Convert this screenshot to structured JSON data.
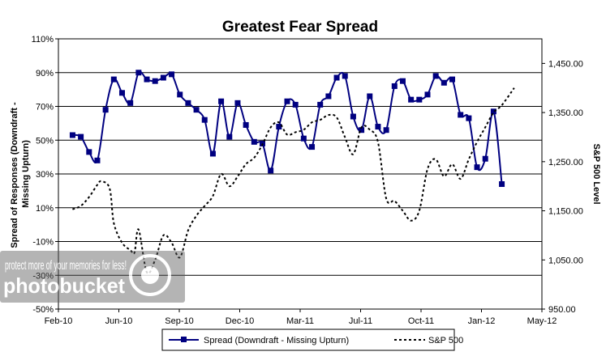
{
  "chart_data": {
    "type": "line",
    "title": "Greatest Fear Spread",
    "ylabel": "Spread of Responses (Downdraft - Missing Upturn)",
    "y2label": "S&P 500 Level",
    "xlabel": "",
    "x_ticks": [
      "Feb-10",
      "Jun-10",
      "Sep-10",
      "Dec-10",
      "Mar-11",
      "Jul-11",
      "Oct-11",
      "Jan-12",
      "May-12"
    ],
    "x_range": [
      "2010-02-01",
      "2012-05-01"
    ],
    "y_ticks": [
      "110%",
      "90%",
      "70%",
      "50%",
      "30%",
      "10%",
      "-10%",
      "-30%",
      "-50%"
    ],
    "ylim": [
      -50,
      110
    ],
    "y2_ticks": [
      "1,450.00",
      "1,350.00",
      "1,250.00",
      "1,150.00",
      "1,050.00",
      "950.00"
    ],
    "y2lim": [
      950,
      1500
    ],
    "grid": "horizontal",
    "legend_position": "bottom",
    "series": [
      {
        "name": "Spread (Downdraft - Missing Upturn)",
        "axis": "left",
        "color": "#000080",
        "marker": "square",
        "line": "solid",
        "points": [
          [
            "2010-02-25",
            53
          ],
          [
            "2010-03-11",
            52
          ],
          [
            "2010-03-25",
            43
          ],
          [
            "2010-04-08",
            38
          ],
          [
            "2010-04-22",
            68
          ],
          [
            "2010-05-06",
            86
          ],
          [
            "2010-05-20",
            78
          ],
          [
            "2010-06-03",
            72
          ],
          [
            "2010-06-17",
            90
          ],
          [
            "2010-07-01",
            86
          ],
          [
            "2010-07-15",
            85
          ],
          [
            "2010-07-29",
            87
          ],
          [
            "2010-08-12",
            89
          ],
          [
            "2010-08-26",
            77
          ],
          [
            "2010-09-09",
            72
          ],
          [
            "2010-09-23",
            68
          ],
          [
            "2010-10-07",
            62
          ],
          [
            "2010-10-21",
            42
          ],
          [
            "2010-11-04",
            73
          ],
          [
            "2010-11-18",
            52
          ],
          [
            "2010-12-02",
            72
          ],
          [
            "2010-12-16",
            59
          ],
          [
            "2010-12-30",
            49
          ],
          [
            "2011-01-13",
            48
          ],
          [
            "2011-01-27",
            32
          ],
          [
            "2011-02-10",
            58
          ],
          [
            "2011-02-24",
            73
          ],
          [
            "2011-03-10",
            71
          ],
          [
            "2011-03-24",
            51
          ],
          [
            "2011-04-07",
            46
          ],
          [
            "2011-04-21",
            71
          ],
          [
            "2011-05-05",
            76
          ],
          [
            "2011-05-19",
            87
          ],
          [
            "2011-06-02",
            88
          ],
          [
            "2011-06-16",
            64
          ],
          [
            "2011-06-30",
            56
          ],
          [
            "2011-07-14",
            76
          ],
          [
            "2011-07-28",
            58
          ],
          [
            "2011-08-11",
            56
          ],
          [
            "2011-08-25",
            82
          ],
          [
            "2011-09-08",
            85
          ],
          [
            "2011-09-22",
            74
          ],
          [
            "2011-10-06",
            74
          ],
          [
            "2011-10-20",
            77
          ],
          [
            "2011-11-03",
            88
          ],
          [
            "2011-11-17",
            84
          ],
          [
            "2011-12-01",
            86
          ],
          [
            "2011-12-15",
            65
          ],
          [
            "2011-12-29",
            63
          ],
          [
            "2012-01-12",
            34
          ],
          [
            "2012-01-26",
            39
          ],
          [
            "2012-02-09",
            67
          ],
          [
            "2012-02-23",
            24
          ]
        ]
      },
      {
        "name": "S&P 500",
        "axis": "right",
        "color": "#000000",
        "marker": "none",
        "line": "dotted",
        "points": [
          [
            "2010-02-25",
            1153
          ],
          [
            "2010-03-11",
            1160
          ],
          [
            "2010-03-25",
            1178
          ],
          [
            "2010-04-08",
            1203
          ],
          [
            "2010-04-15",
            1210
          ],
          [
            "2010-04-29",
            1195
          ],
          [
            "2010-05-06",
            1125
          ],
          [
            "2010-05-20",
            1085
          ],
          [
            "2010-06-03",
            1070
          ],
          [
            "2010-06-10",
            1065
          ],
          [
            "2010-06-17",
            1112
          ],
          [
            "2010-07-01",
            1025
          ],
          [
            "2010-07-15",
            1050
          ],
          [
            "2010-07-29",
            1100
          ],
          [
            "2010-08-12",
            1085
          ],
          [
            "2010-08-26",
            1055
          ],
          [
            "2010-09-09",
            1110
          ],
          [
            "2010-09-23",
            1140
          ],
          [
            "2010-10-07",
            1160
          ],
          [
            "2010-10-21",
            1180
          ],
          [
            "2010-11-04",
            1225
          ],
          [
            "2010-11-18",
            1200
          ],
          [
            "2010-12-02",
            1220
          ],
          [
            "2010-12-16",
            1245
          ],
          [
            "2010-12-30",
            1258
          ],
          [
            "2011-01-13",
            1285
          ],
          [
            "2011-01-27",
            1320
          ],
          [
            "2011-02-10",
            1330
          ],
          [
            "2011-02-24",
            1305
          ],
          [
            "2011-03-10",
            1310
          ],
          [
            "2011-03-24",
            1315
          ],
          [
            "2011-04-07",
            1330
          ],
          [
            "2011-04-21",
            1335
          ],
          [
            "2011-05-05",
            1345
          ],
          [
            "2011-05-19",
            1340
          ],
          [
            "2011-06-02",
            1300
          ],
          [
            "2011-06-16",
            1265
          ],
          [
            "2011-06-30",
            1320
          ],
          [
            "2011-07-14",
            1315
          ],
          [
            "2011-07-28",
            1290
          ],
          [
            "2011-08-11",
            1175
          ],
          [
            "2011-08-25",
            1170
          ],
          [
            "2011-09-08",
            1150
          ],
          [
            "2011-09-22",
            1130
          ],
          [
            "2011-10-06",
            1150
          ],
          [
            "2011-10-20",
            1235
          ],
          [
            "2011-11-03",
            1255
          ],
          [
            "2011-11-17",
            1220
          ],
          [
            "2011-12-01",
            1245
          ],
          [
            "2011-12-15",
            1215
          ],
          [
            "2011-12-29",
            1255
          ],
          [
            "2012-01-12",
            1290
          ],
          [
            "2012-01-26",
            1320
          ],
          [
            "2012-02-09",
            1350
          ],
          [
            "2012-02-23",
            1365
          ],
          [
            "2012-03-15",
            1400
          ]
        ]
      }
    ]
  },
  "watermark": {
    "line1": "protect more of your memories for less!",
    "line2": "photobucket"
  }
}
